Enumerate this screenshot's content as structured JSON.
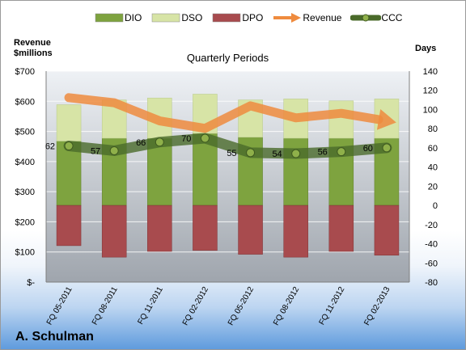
{
  "chart_data": {
    "type": "bar",
    "title": "Quarterly Periods",
    "company": "A. Schulman",
    "ylabel_left": "Revenue\n$millions",
    "ylabel_right": "Days",
    "categories": [
      "FQ 05-2011",
      "FQ 08-2011",
      "FQ 11-2011",
      "FQ 02-2012",
      "FQ 05-2012",
      "FQ 08-2012",
      "FQ 11-2012",
      "FQ 02-2013"
    ],
    "left_axis": {
      "min": 0,
      "max": 700,
      "step": 100,
      "tick_labels": [
        "$-",
        "$100",
        "$200",
        "$300",
        "$400",
        "$500",
        "$600",
        "$700"
      ]
    },
    "right_axis": {
      "min": -80,
      "max": 140,
      "step": 20,
      "tick_labels": [
        "-80",
        "-60",
        "-40",
        "-20",
        "0",
        "20",
        "40",
        "60",
        "80",
        "100",
        "120",
        "140"
      ]
    },
    "grid": true,
    "legend_position": "top",
    "series": [
      {
        "name": "DIO",
        "type": "stacked-bar",
        "axis": "right",
        "color": "#7ea33f",
        "values": [
          67,
          70,
          70,
          75,
          71,
          70,
          70,
          70
        ]
      },
      {
        "name": "DSO",
        "type": "stacked-bar",
        "axis": "right",
        "color": "#d7e4a6",
        "values": [
          38,
          40,
          42,
          41,
          39,
          41,
          39,
          41
        ]
      },
      {
        "name": "DPO",
        "type": "stacked-bar",
        "axis": "right",
        "color": "#a84b4e",
        "values": [
          -42,
          -54,
          -48,
          -47,
          -51,
          -54,
          -48,
          -52
        ]
      },
      {
        "name": "Revenue",
        "type": "line",
        "axis": "left",
        "color": "#ef8b3e",
        "values": [
          612,
          595,
          535,
          510,
          585,
          545,
          560,
          535
        ]
      },
      {
        "name": "CCC",
        "type": "line",
        "axis": "right",
        "color": "#4a6a2a",
        "values": [
          62,
          57,
          66,
          70,
          55,
          54,
          56,
          60
        ],
        "data_labels": [
          "62",
          "57",
          "66",
          "70",
          "55",
          "54",
          "56",
          "60"
        ]
      }
    ]
  }
}
